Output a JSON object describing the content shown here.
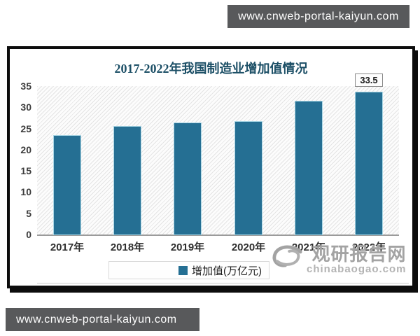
{
  "banners": {
    "top": "www.cnweb-portal-kaiyun.com",
    "bottom": "www.cnweb-portal-kaiyun.com"
  },
  "chart_data": {
    "type": "bar",
    "title": "2017-2022年我国制造业增加值情况",
    "categories": [
      "2017年",
      "2018年",
      "2019年",
      "2020年",
      "2021年",
      "2022年"
    ],
    "values": [
      23.2,
      25.5,
      26.2,
      26.6,
      31.4,
      33.5
    ],
    "series_name": "增加值(万亿元)",
    "ylabel": "",
    "xlabel": "",
    "ylim": [
      0,
      35
    ],
    "yticks": [
      0,
      5,
      10,
      15,
      20,
      25,
      30,
      35
    ],
    "grid": false,
    "legend_position": "bottom",
    "bar_color": "#256f93",
    "title_color": "#1c4f66",
    "annotation": {
      "category_index": 5,
      "text": "33.5"
    }
  },
  "legend": {
    "label": "增加值(万亿元)",
    "marker_color": "#256f93"
  },
  "watermark": {
    "name": "观研报告网",
    "domain": "chinabaogao.com"
  }
}
